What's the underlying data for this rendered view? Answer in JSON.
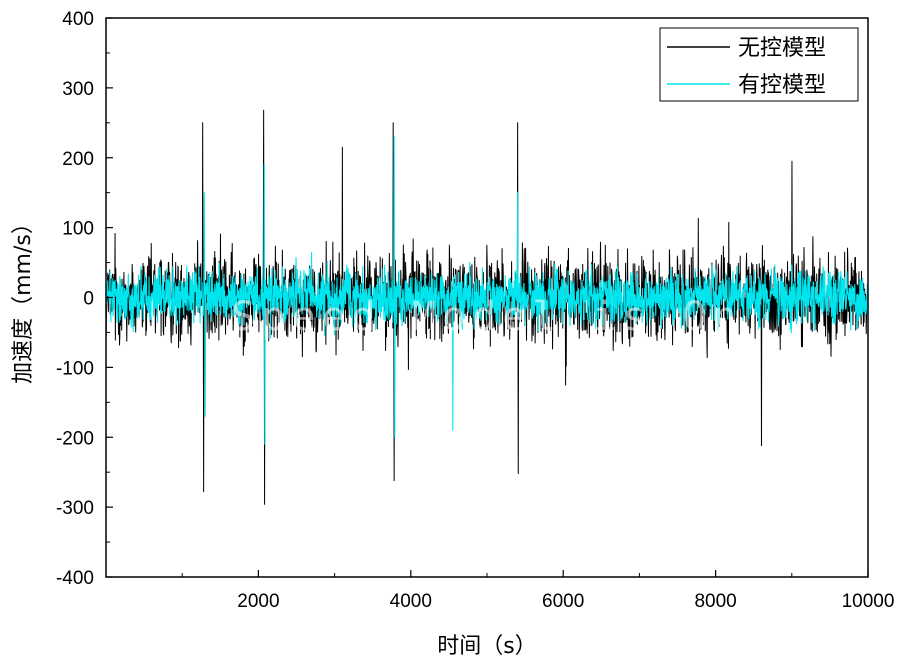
{
  "chart_data": {
    "type": "line",
    "xlabel": "时间（s）",
    "ylabel": "加速度（mm/s）",
    "xlim": [
      0,
      10000
    ],
    "ylim": [
      -400,
      400
    ],
    "x_ticks": [
      2000,
      4000,
      6000,
      8000,
      10000
    ],
    "y_ticks": [
      400,
      300,
      200,
      100,
      0,
      -100,
      -200,
      -300,
      -400
    ],
    "grid": false,
    "legend_position": "top-right",
    "watermark": "Speed Model is On",
    "series": [
      {
        "name": "无控模型",
        "color": "#000000",
        "typical_amplitude": 90,
        "peaks": [
          {
            "x": 1270,
            "y": 250
          },
          {
            "x": 1280,
            "y": -278
          },
          {
            "x": 2070,
            "y": 268
          },
          {
            "x": 2080,
            "y": -296
          },
          {
            "x": 3100,
            "y": 215
          },
          {
            "x": 3770,
            "y": 250
          },
          {
            "x": 3780,
            "y": -262
          },
          {
            "x": 5400,
            "y": 250
          },
          {
            "x": 5410,
            "y": -252
          },
          {
            "x": 8600,
            "y": -212
          },
          {
            "x": 9000,
            "y": 195
          }
        ]
      },
      {
        "name": "有控模型",
        "color": "#00e5ee",
        "typical_amplitude": 55,
        "peaks": [
          {
            "x": 1290,
            "y": 150
          },
          {
            "x": 1300,
            "y": -170
          },
          {
            "x": 2075,
            "y": 190
          },
          {
            "x": 2085,
            "y": -210
          },
          {
            "x": 3780,
            "y": 230
          },
          {
            "x": 3790,
            "y": -200
          },
          {
            "x": 4550,
            "y": -190
          },
          {
            "x": 5400,
            "y": 150
          }
        ]
      }
    ]
  }
}
